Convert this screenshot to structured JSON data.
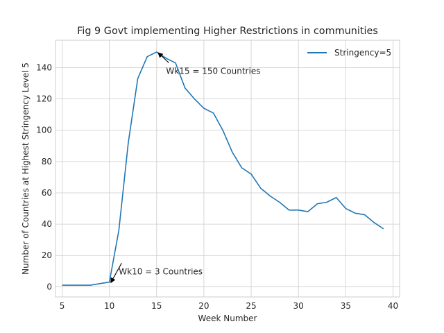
{
  "chart_data": {
    "type": "line",
    "title": "Fig 9 Govt implementing Higher Restrictions in communities",
    "xlabel": "Week Number",
    "ylabel": "Number of Countries at Highest Stringency Level 5",
    "xlim": [
      4.3,
      40.7
    ],
    "ylim": [
      -6.5,
      157.5
    ],
    "xticks": [
      5,
      10,
      15,
      20,
      25,
      30,
      35,
      40
    ],
    "yticks": [
      0,
      20,
      40,
      60,
      80,
      100,
      120,
      140
    ],
    "grid": true,
    "legend_position": "top-right",
    "series": [
      {
        "name": "Stringency=5",
        "color": "#1f77b4",
        "x": [
          5,
          6,
          7,
          8,
          9,
          10,
          11,
          12,
          13,
          14,
          15,
          16,
          17,
          18,
          19,
          20,
          21,
          22,
          23,
          24,
          25,
          26,
          27,
          28,
          29,
          30,
          31,
          32,
          33,
          34,
          35,
          36,
          37,
          38,
          39
        ],
        "y": [
          1,
          1,
          1,
          1,
          2,
          3,
          36,
          92,
          133,
          147,
          150,
          146,
          143,
          127,
          120,
          114,
          111,
          100,
          86,
          76,
          72,
          63,
          58,
          54,
          49,
          49,
          48,
          53,
          54,
          57,
          50,
          47,
          46,
          41,
          37
        ]
      }
    ],
    "annotations": [
      {
        "text": "Wk15 = 150 Countries",
        "xy": [
          15,
          150
        ],
        "xytext": [
          16,
          136
        ]
      },
      {
        "text": "Wk10 = 3 Countries",
        "xy": [
          10,
          3
        ],
        "xytext": [
          11,
          8
        ]
      }
    ]
  }
}
